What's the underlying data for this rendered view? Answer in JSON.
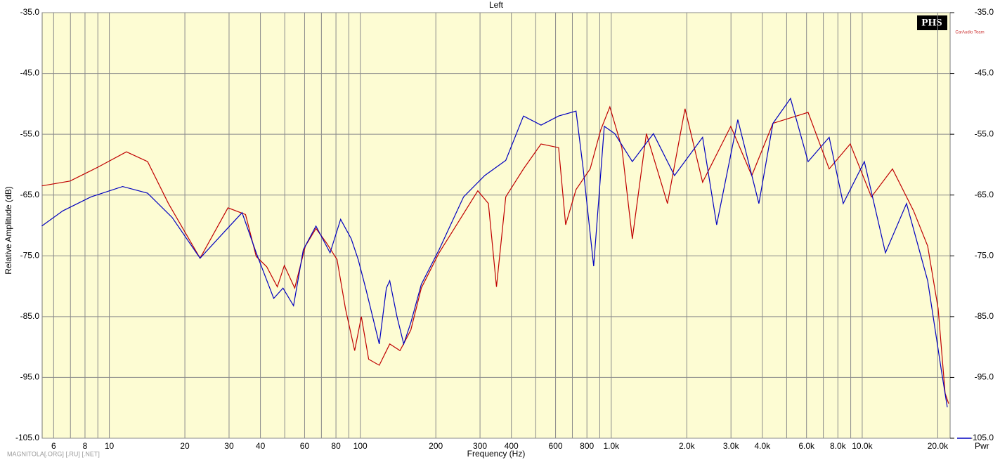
{
  "chart_data": {
    "type": "line",
    "title": "Left",
    "x_label": "Frequency (Hz)",
    "y_label": "Relative Amplitude (dB)",
    "log_x": true,
    "grid": true,
    "legend": "bottom-right",
    "watermark": "MAGNITOLA[.ORG] [.RU] [.NET]",
    "logo": "PHS",
    "logo_caption": "CarAudio Team",
    "xlim": [
      5.4,
      22400
    ],
    "ylim": [
      -105,
      -35
    ],
    "xticks": [
      6,
      8,
      10,
      20,
      30,
      40,
      60,
      80,
      100,
      200,
      300,
      400,
      600,
      800,
      {
        "value": 1000,
        "label": "1.0k"
      },
      {
        "value": 2000,
        "label": "2.0k"
      },
      {
        "value": 3000,
        "label": "3.0k"
      },
      {
        "value": 4000,
        "label": "4.0k"
      },
      {
        "value": 6000,
        "label": "6.0k"
      },
      {
        "value": 8000,
        "label": "8.0k"
      },
      {
        "value": 10000,
        "label": "10.0k"
      },
      {
        "value": 20000,
        "label": "20.0k"
      }
    ],
    "minor_xticks": [
      7,
      9,
      50,
      70,
      90,
      500,
      700,
      900,
      5000,
      7000,
      9000
    ],
    "yticks": [
      {
        "value": -35,
        "label": "-35.0"
      },
      {
        "value": -45,
        "label": "-45.0"
      },
      {
        "value": -55,
        "label": "-55.0"
      },
      {
        "value": -65,
        "label": "-65.0"
      },
      {
        "value": -75,
        "label": "-75.0"
      },
      {
        "value": -85,
        "label": "-85.0"
      },
      {
        "value": -95,
        "label": "-95.0"
      },
      {
        "value": -105,
        "label": "-105.0"
      }
    ],
    "series": [
      {
        "name": "Pwr",
        "color": "#0000c0",
        "x": [
          5.38,
          6.53,
          8.46,
          11.3,
          14.2,
          17.8,
          23.0,
          28.8,
          33.8,
          38.5,
          45.2,
          49.2,
          54.2,
          59.3,
          66.6,
          75.8,
          83.5,
          92.0,
          98.1,
          105,
          110,
          119,
          127,
          131,
          140,
          149,
          159,
          175,
          206,
          258,
          313,
          380,
          447,
          525,
          617,
          724,
          773,
          851,
          938,
          1033,
          1213,
          1472,
          1787,
          2312,
          2631,
          3193,
          3875,
          4409,
          5180,
          6086,
          7385,
          8400,
          10200,
          12380,
          15020,
          18230,
          20720,
          21830
        ],
        "values": [
          -70.1,
          -67.6,
          -65.3,
          -63.6,
          -64.7,
          -68.7,
          -75.4,
          -71,
          -67.9,
          -74.5,
          -82,
          -80.3,
          -83.2,
          -74,
          -70.1,
          -74.5,
          -69,
          -72.2,
          -75.6,
          -80.3,
          -83.7,
          -89.5,
          -80.3,
          -79.1,
          -85,
          -89.5,
          -86,
          -79.7,
          -74,
          -65.3,
          -61.8,
          -59.3,
          -52,
          -53.5,
          -52,
          -51.2,
          -60.7,
          -76.7,
          -53.7,
          -54.9,
          -59.5,
          -54.9,
          -61.8,
          -55.5,
          -69.9,
          -52.6,
          -66.4,
          -53.2,
          -49.1,
          -59.5,
          -55.5,
          -66.4,
          -59.5,
          -74.5,
          -66.4,
          -79.1,
          -94.1,
          -99.9
        ]
      },
      {
        "color": "#c00000",
        "x": [
          5.38,
          6.97,
          9.02,
          11.7,
          14.2,
          17.2,
          23.0,
          29.7,
          34.9,
          38.5,
          42.4,
          46.7,
          49.8,
          54.8,
          60.4,
          66.6,
          73.4,
          80.8,
          87.3,
          95.0,
          101,
          108,
          119,
          131,
          144,
          159,
          175,
          206,
          242,
          294,
          324,
          349,
          380,
          447,
          525,
          617,
          658,
          724,
          824,
          908,
          987,
          1102,
          1213,
          1380,
          1675,
          1968,
          2312,
          2994,
          3632,
          4409,
          6086,
          7385,
          8962,
          10880,
          13200,
          16020,
          18230,
          20070,
          21400,
          22100
        ],
        "values": [
          -63.5,
          -62.7,
          -60.4,
          -57.9,
          -59.5,
          -66.4,
          -75.4,
          -67.1,
          -68.2,
          -75.1,
          -76.8,
          -80.1,
          -76.6,
          -80.3,
          -73.4,
          -70.5,
          -72.9,
          -75.6,
          -83.7,
          -90.6,
          -85,
          -92,
          -93,
          -89.5,
          -90.6,
          -87.2,
          -80.3,
          -74.5,
          -69.9,
          -64.3,
          -66.4,
          -80.1,
          -65.3,
          -60.7,
          -56.6,
          -57.2,
          -69.9,
          -64.1,
          -60.7,
          -54.3,
          -50.5,
          -57.2,
          -72.2,
          -54.9,
          -66.4,
          -50.8,
          -62.9,
          -53.7,
          -61.8,
          -53.2,
          -51.4,
          -60.7,
          -56.6,
          -65.3,
          -60.7,
          -67.6,
          -73.4,
          -83.7,
          -97.6,
          -99.3
        ]
      }
    ]
  }
}
